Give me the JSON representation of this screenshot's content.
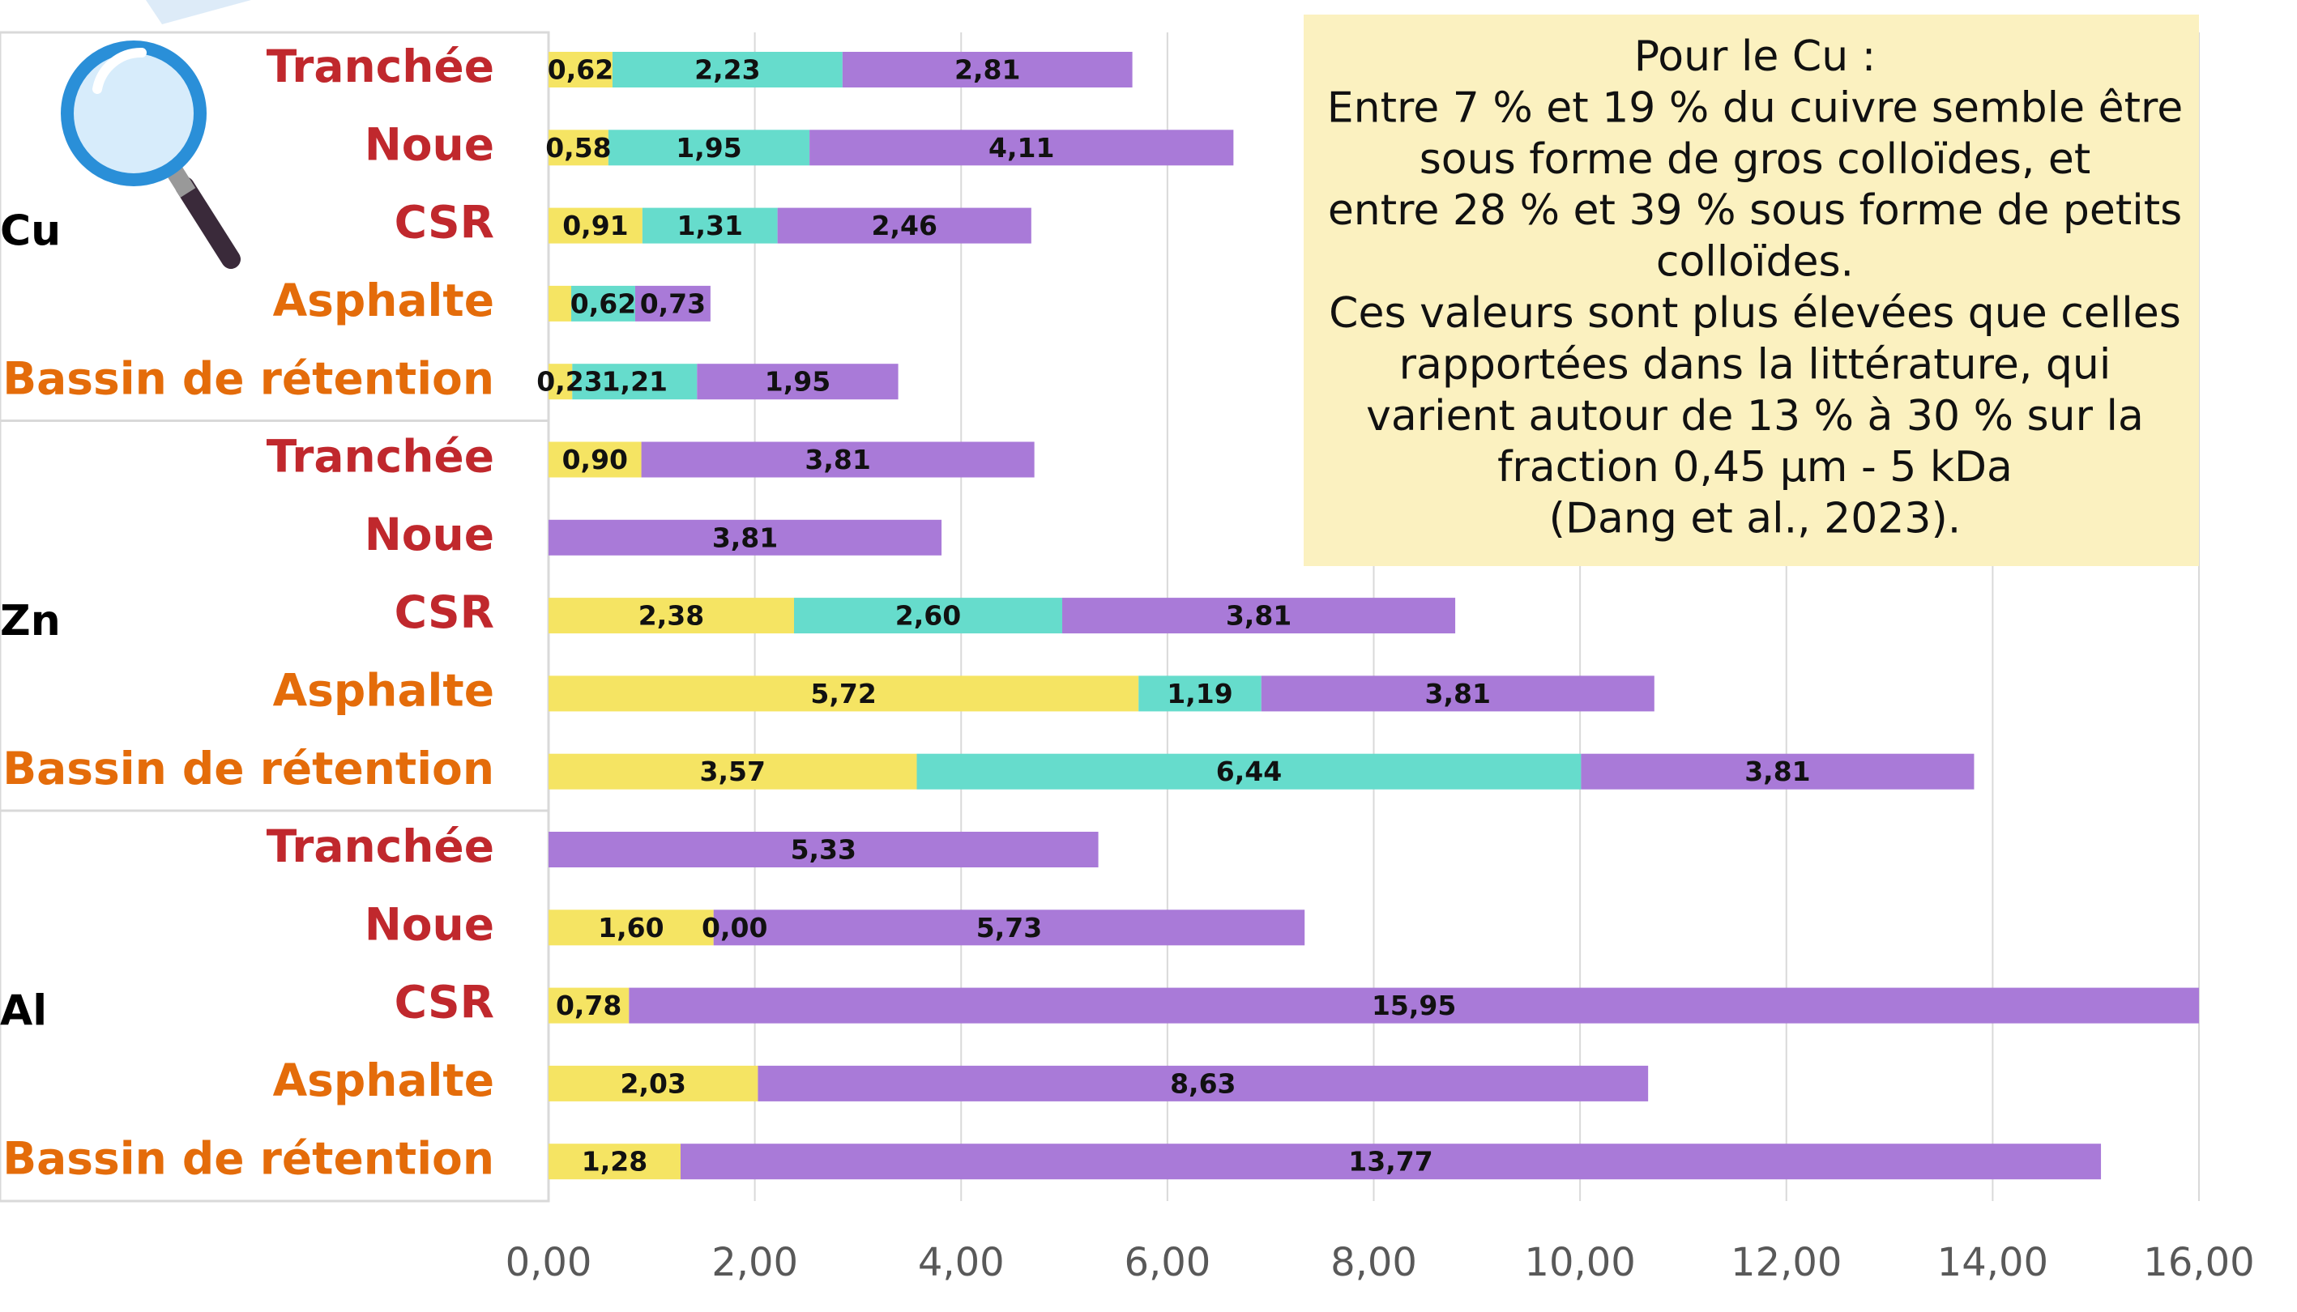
{
  "chart_data": {
    "type": "stacked_barh",
    "groups": [
      "Cu",
      "Zn",
      "Al"
    ],
    "categories": [
      "Tranchée",
      "Noue",
      "CSR",
      "Asphalte",
      "Bassin de rétention",
      "Tranchée",
      "Noue",
      "CSR",
      "Asphalte",
      "Bassin de rétention",
      "Tranchée",
      "Noue",
      "CSR",
      "Asphalte",
      "Bassin de rétention"
    ],
    "category_colors": [
      "#c0282d",
      "#c0282d",
      "#c0282d",
      "#e46c0a",
      "#e46c0a",
      "#c0282d",
      "#c0282d",
      "#c0282d",
      "#e46c0a",
      "#e46c0a",
      "#c0282d",
      "#c0282d",
      "#c0282d",
      "#e46c0a",
      "#e46c0a"
    ],
    "series": [
      {
        "color": "#f5e463",
        "values": [
          0.62,
          0.58,
          0.91,
          0.22,
          0.23,
          0.9,
          null,
          2.38,
          5.72,
          3.57,
          null,
          1.6,
          0.78,
          2.03,
          1.28
        ],
        "value_labels": [
          "0,62",
          "0,58",
          "0,91",
          null,
          "0,23",
          "0,90",
          null,
          "2,38",
          "5,72",
          "3,57",
          null,
          "1,60",
          "0,78",
          "2,03",
          "1,28"
        ]
      },
      {
        "color": "#66dccc",
        "values": [
          2.23,
          1.95,
          1.31,
          0.62,
          1.21,
          null,
          null,
          2.6,
          1.19,
          6.44,
          null,
          0.0,
          null,
          null,
          null
        ],
        "value_labels": [
          "2,23",
          "1,95",
          "1,31",
          "0,62",
          "1,21",
          null,
          null,
          "2,60",
          "1,19",
          "6,44",
          null,
          "0,00",
          null,
          null,
          null
        ]
      },
      {
        "color": "#a97ad8",
        "values": [
          2.81,
          4.11,
          2.46,
          0.73,
          1.95,
          3.81,
          3.81,
          3.81,
          3.81,
          3.81,
          5.33,
          5.73,
          15.95,
          8.63,
          13.77
        ],
        "value_labels": [
          "2,81",
          "4,11",
          "2,46",
          "0,73",
          "1,95",
          "3,81",
          "3,81",
          "3,81",
          "3,81",
          "3,81",
          "5,33",
          "5,73",
          "15,95",
          "8,63",
          "13,77"
        ]
      }
    ],
    "xlim": [
      0,
      16
    ],
    "xticks": [
      {
        "value": 0,
        "label": "0,00"
      },
      {
        "value": 2,
        "label": "2,00"
      },
      {
        "value": 4,
        "label": "4,00"
      },
      {
        "value": 6,
        "label": "6,00"
      },
      {
        "value": 8,
        "label": "8,00"
      },
      {
        "value": 10,
        "label": "10,00"
      },
      {
        "value": 12,
        "label": "12,00"
      },
      {
        "value": 14,
        "label": "14,00"
      },
      {
        "value": 16,
        "label": "16,00"
      }
    ],
    "grid": true,
    "annotation": [
      "Pour le Cu :",
      "Entre 7 % et 19 % du cuivre semble être",
      "sous forme de gros colloïdes, et",
      "entre 28 % et 39 % sous forme de petits",
      "colloïdes.",
      "Ces valeurs sont plus élevées que celles",
      "rapportées dans la littérature, qui",
      "varient autour de 13 % à 30 % sur la",
      "fraction 0,45 µm - 5 kDa",
      "(Dang et al., 2023)."
    ]
  }
}
